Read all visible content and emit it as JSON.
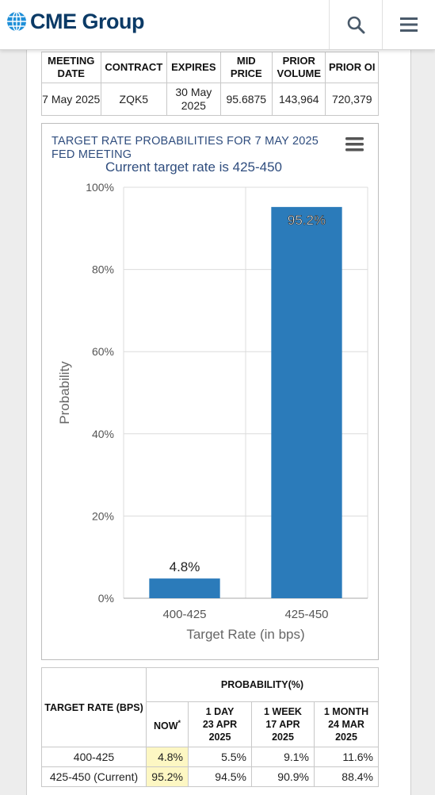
{
  "header": {
    "logo_text": "CME Group",
    "search_icon": "search-icon",
    "menu_icon": "hamburger-menu-icon"
  },
  "meeting_table": {
    "headers": [
      "MEETING DATE",
      "CONTRACT",
      "EXPIRES",
      "MID PRICE",
      "PRIOR VOLUME",
      "PRIOR OI"
    ],
    "row": [
      "7 May 2025",
      "ZQK5",
      "30 May 2025",
      "95.6875",
      "143,964",
      "720,379"
    ]
  },
  "chart_data": {
    "type": "bar",
    "title": "TARGET RATE PROBABILITIES FOR 7 MAY 2025 FED MEETING",
    "subtitle": "Current target rate is 425-450",
    "categories": [
      "400-425",
      "425-450"
    ],
    "values": [
      4.8,
      95.2
    ],
    "data_labels": [
      "4.8%",
      "95.2%"
    ],
    "xlabel": "Target Rate (in bps)",
    "ylabel": "Probability",
    "ylim": [
      0,
      100
    ],
    "yticks": [
      "0%",
      "20%",
      "40%",
      "60%",
      "80%",
      "100%"
    ],
    "bar_color": "#2b7bba",
    "grid": true
  },
  "probability_table": {
    "col_rate": "TARGET RATE (BPS)",
    "col_group": "PROBABILITY(%)",
    "col_now": "NOW",
    "col_now_mark": "*",
    "columns": [
      {
        "line1": "1 DAY",
        "line2": "23 APR",
        "line3": "2025"
      },
      {
        "line1": "1 WEEK",
        "line2": "17 APR",
        "line3": "2025"
      },
      {
        "line1": "1 MONTH",
        "line2": "24 MAR",
        "line3": "2025"
      }
    ],
    "rows": [
      {
        "rate": "400-425",
        "now": "4.8%",
        "d1": "5.5%",
        "w1": "9.1%",
        "m1": "11.6%"
      },
      {
        "rate": "425-450 (Current)",
        "now": "95.2%",
        "d1": "94.5%",
        "w1": "90.9%",
        "m1": "88.4%"
      }
    ]
  }
}
